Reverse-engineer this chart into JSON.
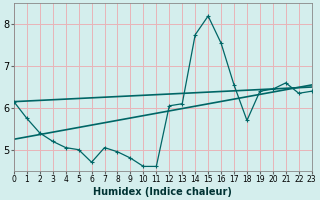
{
  "title": "",
  "xlabel": "Humidex (Indice chaleur)",
  "ylabel": "",
  "background_color": "#d4eeed",
  "line_color": "#006666",
  "grid_color": "#e8b4b8",
  "x_data": [
    0,
    1,
    2,
    3,
    4,
    5,
    6,
    7,
    8,
    9,
    10,
    11,
    12,
    13,
    14,
    15,
    16,
    17,
    18,
    19,
    20,
    21,
    22,
    23
  ],
  "y_main": [
    6.15,
    5.75,
    5.4,
    5.2,
    5.05,
    5.0,
    4.7,
    5.05,
    4.95,
    4.8,
    4.6,
    4.6,
    6.05,
    6.1,
    7.75,
    8.2,
    7.55,
    6.55,
    5.7,
    6.4,
    6.45,
    6.6,
    6.35,
    6.4
  ],
  "reg_line1_x": [
    0,
    23
  ],
  "reg_line1_y": [
    5.25,
    6.55
  ],
  "reg_line2_x": [
    0,
    23
  ],
  "reg_line2_y": [
    6.15,
    6.5
  ],
  "xlim": [
    0,
    23
  ],
  "ylim": [
    4.5,
    8.5
  ],
  "yticks": [
    5,
    6,
    7,
    8
  ],
  "xticks": [
    0,
    1,
    2,
    3,
    4,
    5,
    6,
    7,
    8,
    9,
    10,
    11,
    12,
    13,
    14,
    15,
    16,
    17,
    18,
    19,
    20,
    21,
    22,
    23
  ],
  "xtick_labels": [
    "0",
    "1",
    "2",
    "3",
    "4",
    "5",
    "6",
    "7",
    "8",
    "9",
    "10",
    "11",
    "12",
    "13",
    "14",
    "15",
    "16",
    "17",
    "18",
    "19",
    "20",
    "21",
    "22",
    "23"
  ],
  "xlabel_color": "#003333",
  "xlabel_fontsize": 7,
  "tick_fontsize": 5.5,
  "ytick_fontsize": 7
}
